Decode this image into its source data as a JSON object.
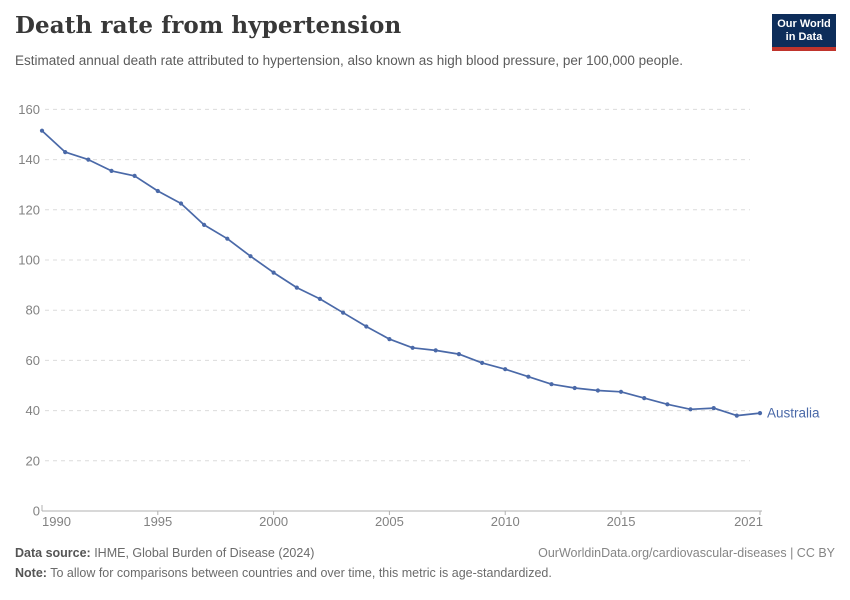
{
  "header": {
    "title": "Death rate from hypertension",
    "subtitle": "Estimated annual death rate attributed to hypertension, also known as high blood pressure, per 100,000 people.",
    "logo": {
      "line1": "Our World",
      "line2": "in Data"
    }
  },
  "chart_data": {
    "type": "line",
    "title": "Death rate from hypertension",
    "x": [
      1990,
      1991,
      1992,
      1993,
      1994,
      1995,
      1996,
      1997,
      1998,
      1999,
      2000,
      2001,
      2002,
      2003,
      2004,
      2005,
      2006,
      2007,
      2008,
      2009,
      2010,
      2011,
      2012,
      2013,
      2014,
      2015,
      2016,
      2017,
      2018,
      2019,
      2020,
      2021
    ],
    "series": [
      {
        "name": "Australia",
        "color": "#4a69a8",
        "values": [
          151.5,
          143,
          140,
          135.5,
          133.5,
          127.5,
          122.5,
          114,
          108.5,
          101.5,
          95,
          89,
          84.5,
          79,
          73.5,
          68.5,
          65,
          64,
          62.5,
          59,
          56.5,
          53.5,
          50.5,
          49,
          48,
          47.5,
          45,
          42.5,
          40.5,
          41,
          38,
          39
        ]
      }
    ],
    "xlabel": "",
    "ylabel": "",
    "ylim": [
      0,
      160
    ],
    "yticks": [
      0,
      20,
      40,
      60,
      80,
      100,
      120,
      140,
      160
    ],
    "xticks": [
      1990,
      1995,
      2000,
      2005,
      2010,
      2015,
      2021
    ],
    "grid": "horizontal-dashed",
    "legend": "end-of-line-label"
  },
  "footer": {
    "datasource_label": "Data source:",
    "datasource_text": " IHME, Global Burden of Disease (2024)",
    "attribution": "OurWorldinData.org/cardiovascular-diseases | CC BY",
    "note_label": "Note:",
    "note_text": " To allow for comparisons between countries and over time, this metric is age-standardized."
  },
  "colors": {
    "line": "#4a69a8",
    "grid": "#dcdcdc",
    "axis": "#b0b0b0",
    "tick_label": "#828282",
    "logo_bg": "#0d2d5a",
    "logo_stripe": "#c0342c"
  }
}
